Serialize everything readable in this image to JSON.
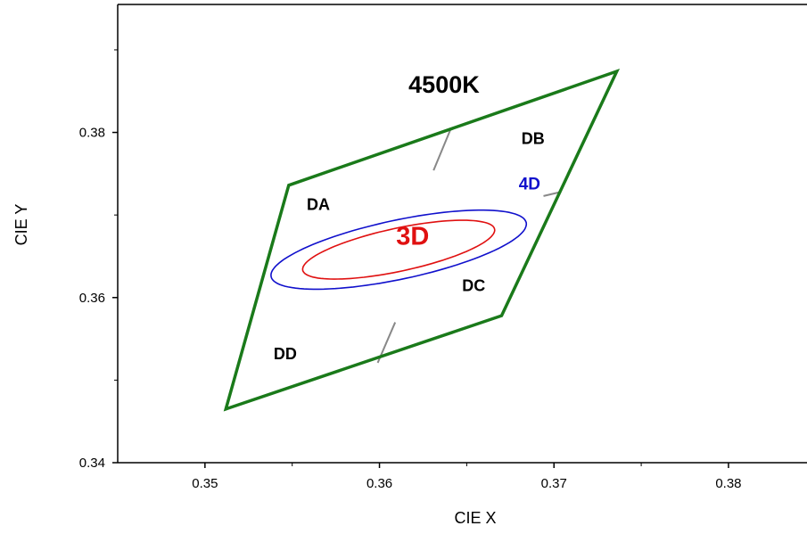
{
  "chart_data": {
    "type": "line",
    "xlabel": "CIE X",
    "ylabel": "CIE Y",
    "xlim": [
      0.345,
      0.3845
    ],
    "ylim": [
      0.34,
      0.3955
    ],
    "x_ticks": [
      0.35,
      0.36,
      0.37,
      0.38
    ],
    "y_ticks": [
      0.34,
      0.36,
      0.38
    ],
    "x_tick_labels": [
      "0.35",
      "0.36",
      "0.37",
      "0.38"
    ],
    "y_tick_labels": [
      "0.34",
      "0.36",
      "0.38"
    ],
    "grid": false,
    "quadrangle": {
      "label": "4500K",
      "color": "#1a7a1a",
      "points": [
        {
          "x": 0.3548,
          "y": 0.3736
        },
        {
          "x": 0.3736,
          "y": 0.3874
        },
        {
          "x": 0.367,
          "y": 0.3578
        },
        {
          "x": 0.3512,
          "y": 0.3465
        }
      ]
    },
    "dividers": {
      "color": "#888888",
      "segments": [
        {
          "x1": 0.3641,
          "y1": 0.3805,
          "x2": 0.3631,
          "y2": 0.3754
        },
        {
          "x1": 0.3704,
          "y1": 0.3728,
          "x2": 0.3694,
          "y2": 0.3723
        },
        {
          "x1": 0.3599,
          "y1": 0.3521,
          "x2": 0.3609,
          "y2": 0.357
        }
      ]
    },
    "ellipses": [
      {
        "label": "4D",
        "color": "#1010cc",
        "cx": 0.3611,
        "cy": 0.3658,
        "a": 0.0081,
        "b": 0.0033,
        "rotation_deg": 28
      },
      {
        "label": "3D",
        "color": "#e01010",
        "cx": 0.3611,
        "cy": 0.3658,
        "a": 0.0061,
        "b": 0.0024,
        "rotation_deg": 28
      }
    ],
    "annotations": [
      {
        "text": "DA",
        "x": 0.3565,
        "y": 0.3706
      },
      {
        "text": "DB",
        "x": 0.3688,
        "y": 0.3786
      },
      {
        "text": "DC",
        "x": 0.3654,
        "y": 0.3608
      },
      {
        "text": "DD",
        "x": 0.3546,
        "y": 0.3525
      }
    ]
  }
}
